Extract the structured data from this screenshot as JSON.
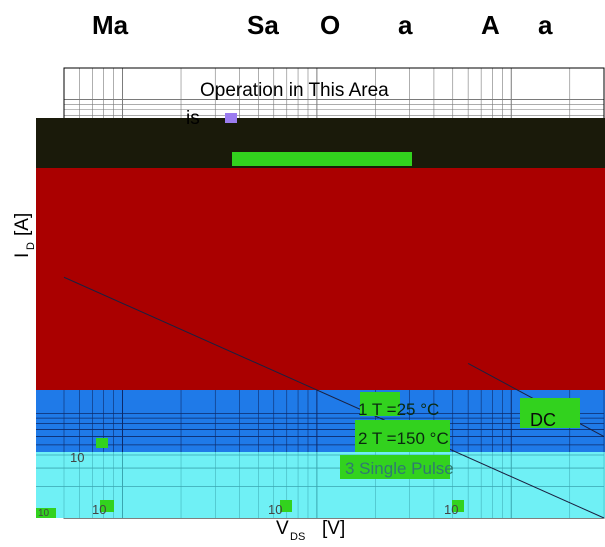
{
  "header": {
    "title_fragments": [
      "Ma",
      "Sa",
      "O",
      "a",
      "A",
      "a"
    ]
  },
  "chart_data": {
    "type": "line",
    "title": "",
    "xlabel": {
      "main": "V",
      "sub": "DS",
      "unit": "[V]"
    },
    "ylabel": {
      "main": "I",
      "sub": "D",
      "unit": "[A]"
    },
    "x_scale": "log",
    "y_scale": "log",
    "xlim": [
      0.5,
      300
    ],
    "ylim": [
      0.01,
      200
    ],
    "x_tick_labels": [
      "10",
      "10",
      "10"
    ],
    "y_tick_labels": [
      "10",
      "10"
    ],
    "grid": true,
    "annotations": {
      "area_line1": "Operation in This Area",
      "area_line2": "is",
      "dc": "DC",
      "note1": "1 T =25 °C",
      "note2": "2 T =150 °C",
      "note3": "3 Single Pulse"
    },
    "series": [
      {
        "x": [
          0.5,
          300
        ],
        "y": [
          2.0,
          0.01
        ]
      },
      {
        "x": [
          60,
          300
        ],
        "y": [
          0.3,
          0.06
        ]
      }
    ]
  },
  "colors": {
    "dark_band": "#1a1a0a",
    "red_band": "#aa0000",
    "blue_band": "#1f7ae8",
    "cyan_band": "#6ff0f5",
    "green_patch": "#32d21e",
    "grid": "#7a7a7a"
  }
}
